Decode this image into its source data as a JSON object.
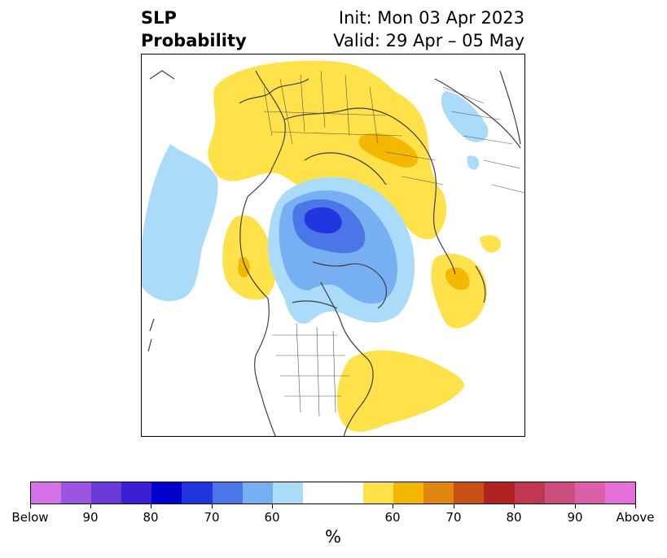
{
  "title": {
    "left_line1": "SLP",
    "left_line2": "Probability",
    "right_line1": "Init: Mon 03 Apr 2023",
    "right_line2": "Valid: 29 Apr – 05 May"
  },
  "colorbar": {
    "unit": "%",
    "colors": [
      "#d473e8",
      "#9b55e2",
      "#6a3ad9",
      "#3a1fd4",
      "#0000cc",
      "#2236dd",
      "#4a76e8",
      "#76b0f3",
      "#aadcfa",
      "#ffffff",
      "#ffffff",
      "#ffe24a",
      "#f4b800",
      "#e0870f",
      "#c75114",
      "#b02222",
      "#c03750",
      "#cc4e7d",
      "#dc5faa",
      "#e56fd8"
    ],
    "tick_labels": [
      "Below",
      "90",
      "80",
      "70",
      "60",
      "60",
      "70",
      "80",
      "90",
      "Above"
    ]
  },
  "map": {
    "colors": {
      "below_60": "#aadcfa",
      "below_70": "#76b0f3",
      "below_80": "#4a76e8",
      "below_90": "#2236dd",
      "above_60": "#ffe24a",
      "above_70": "#f4b800",
      "coast": "#404040"
    }
  }
}
